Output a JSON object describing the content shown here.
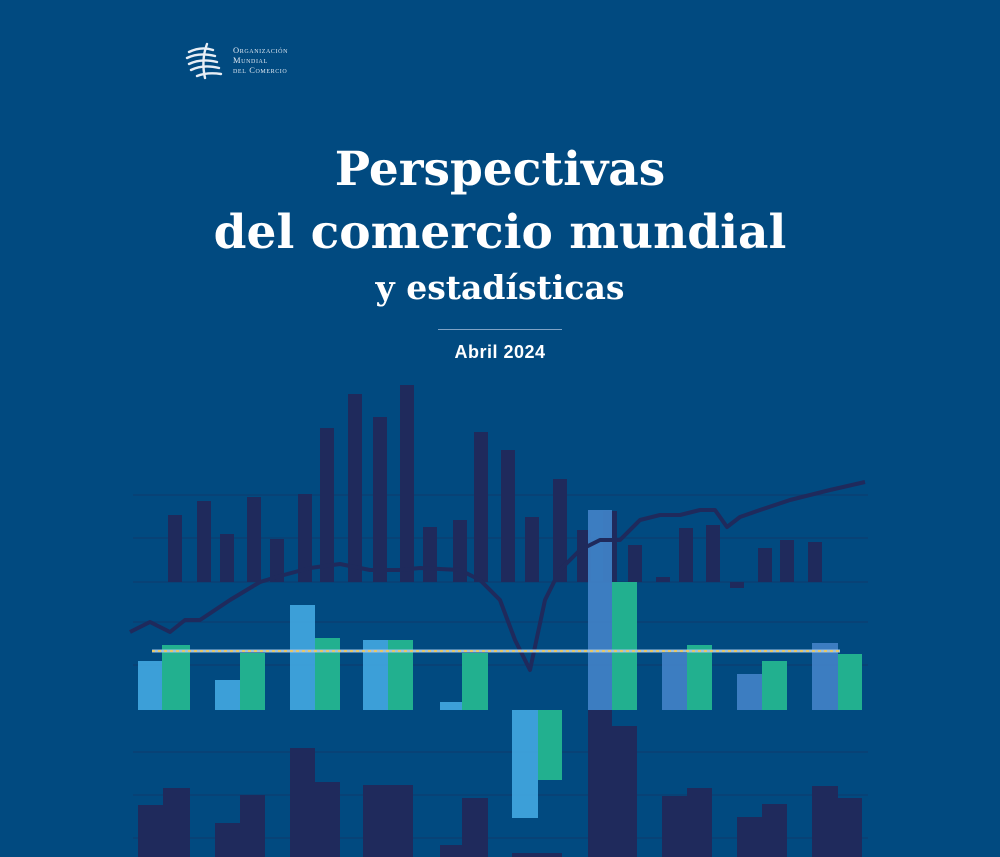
{
  "publisher": {
    "logo_text": [
      "Organización",
      "Mundial",
      "del Comercio"
    ]
  },
  "cover": {
    "title_line1": "Perspectivas",
    "title_line2": "del comercio mundial",
    "subtitle": "y estadísticas",
    "date": "Abril 2024"
  },
  "colors": {
    "background": "#014a80",
    "dark_bars": "#1f2a5c",
    "light_blue_bars": "#3fa3dc",
    "green_bars": "#22b08f",
    "dashed_line": "#e6c96a"
  }
}
